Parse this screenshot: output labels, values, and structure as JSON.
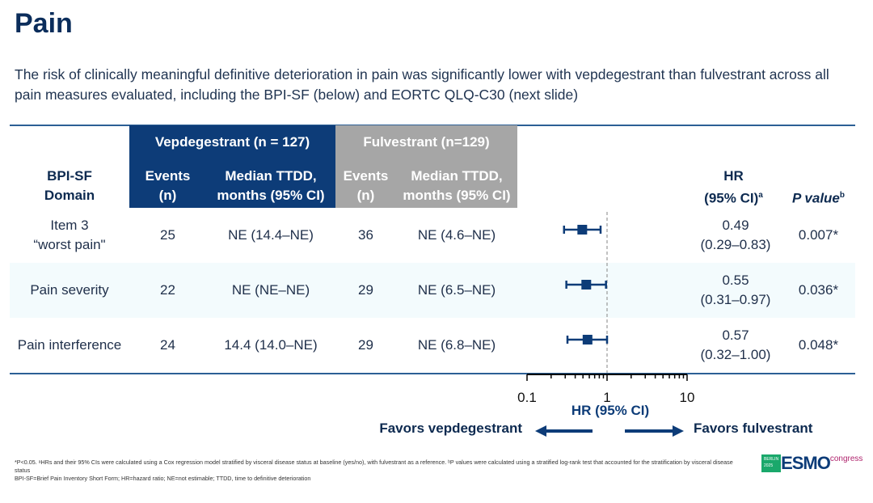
{
  "title": "Pain",
  "subtitle": "The risk of clinically meaningful definitive deterioration in pain was significantly lower with vepdegestrant than fulvestrant across all pain measures evaluated, including the BPI-SF (below) and EORTC QLQ-C30 (next slide)",
  "header": {
    "domain": [
      "BPI-SF",
      "Domain"
    ],
    "vep_group": "Vepdegestrant (n = 127)",
    "fulv_group": "Fulvestrant (n=129)",
    "events": [
      "Events",
      "(n)"
    ],
    "median": [
      "Median TTDD,",
      "months (95% CI)"
    ],
    "hr": [
      "HR",
      "(95% CI)"
    ],
    "hr_sup": "a",
    "p": "P value",
    "p_sup": "b"
  },
  "colors": {
    "vep_header": "#0d3c78",
    "fulv_header": "#a6a6a6",
    "marker": "#0d3c78",
    "title": "#0b2d5b"
  },
  "chart_data": {
    "type": "forest",
    "xscale": "log",
    "xlim": [
      0.1,
      10
    ],
    "xticks": [
      "0.1",
      "1",
      "10"
    ],
    "xlabel": "HR (95% CI)",
    "reference_line": 1,
    "left_label": "Favors vepdegestrant",
    "right_label": "Favors fulvestrant",
    "rows": [
      {
        "domain": [
          "Item 3",
          "“worst pain\""
        ],
        "vep_events": "25",
        "vep_median": "NE (14.4–NE)",
        "fulv_events": "36",
        "fulv_median": "NE (4.6–NE)",
        "hr": 0.49,
        "lo": 0.29,
        "hi": 0.83,
        "hr_text": "0.49",
        "ci_text": "(0.29–0.83)",
        "p": "0.007*"
      },
      {
        "domain": [
          "Pain severity"
        ],
        "vep_events": "22",
        "vep_median": "NE (NE–NE)",
        "fulv_events": "29",
        "fulv_median": "NE (6.5–NE)",
        "hr": 0.55,
        "lo": 0.31,
        "hi": 0.97,
        "hr_text": "0.55",
        "ci_text": "(0.31–0.97)",
        "p": "0.036*"
      },
      {
        "domain": [
          "Pain interference"
        ],
        "vep_events": "24",
        "vep_median": "14.4 (14.0–NE)",
        "fulv_events": "29",
        "fulv_median": "NE (6.8–NE)",
        "hr": 0.57,
        "lo": 0.32,
        "hi": 1.0,
        "hr_text": "0.57",
        "ci_text": "(0.32–1.00)",
        "p": "0.048*"
      }
    ]
  },
  "footnotes": [
    "*P<0.05. ᵃHRs and their 95% CIs were calculated using a Cox regression model stratified by visceral disease status at baseline (yes/no), with fulvestrant as a reference. ᵇP values were calculated using a stratified log-rank test that accounted for the stratification by visceral disease status",
    "BPI-SF=Brief Pain Inventory Short Form; HR=hazard ratio; NE=not estimable; TTDD, time to definitive deterioration"
  ],
  "logo": {
    "city": "BERLIN",
    "year": "2025",
    "name": "ESMO",
    "suffix": "congress"
  }
}
